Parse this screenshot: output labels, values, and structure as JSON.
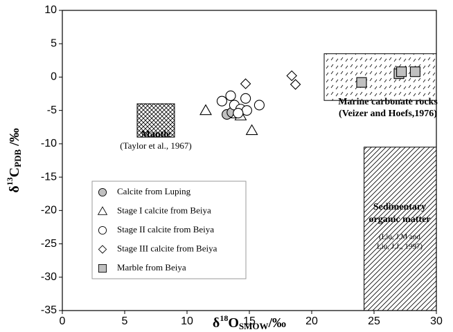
{
  "chart_data": {
    "type": "scatter",
    "x_label": {
      "pre": "δ",
      "sup": "18",
      "main": "O",
      "sub": "SMOW",
      "post": "/‰"
    },
    "y_label": {
      "pre": "δ",
      "sup": "13",
      "main": "C",
      "sub": "PDB",
      "post": " /‰"
    },
    "xlim": [
      0,
      30
    ],
    "ylim": [
      -35,
      10
    ],
    "xticks": [
      0,
      5,
      10,
      15,
      20,
      25,
      30
    ],
    "yticks": [
      -35,
      -30,
      -25,
      -20,
      -15,
      -10,
      -5,
      0,
      5,
      10
    ],
    "legend": "lower left",
    "series": [
      {
        "name": "Calcite from Luping",
        "marker": "circle",
        "color": "#c0c0c0",
        "x": [
          13.2,
          13.6
        ],
        "values": [
          -5.6,
          -5.3
        ]
      },
      {
        "name": "Stage I calcite from Beiya",
        "marker": "triangle",
        "color": "#ffffff",
        "x": [
          11.5,
          14.0,
          14.3,
          15.2
        ],
        "values": [
          -5.0,
          -5.5,
          -5.8,
          -8.0
        ]
      },
      {
        "name": "Stage II calcite from Beiya",
        "marker": "circle",
        "color": "#ffffff",
        "x": [
          12.8,
          13.5,
          13.8,
          14.3,
          14.7,
          14.8,
          15.8,
          14.1
        ],
        "values": [
          -3.6,
          -2.8,
          -4.2,
          -4.8,
          -3.2,
          -5.0,
          -4.2,
          -5.4
        ]
      },
      {
        "name": "Stage III calcite from Beiya",
        "marker": "diamond",
        "color": "#ffffff",
        "x": [
          14.7,
          18.4,
          18.7
        ],
        "values": [
          -1.0,
          0.2,
          -1.1
        ]
      },
      {
        "name": "Marble from Beiya",
        "marker": "square",
        "color": "#c0c0c0",
        "x": [
          24.0,
          27.0,
          27.2,
          28.3
        ],
        "values": [
          -0.8,
          0.5,
          0.8,
          0.8
        ]
      }
    ],
    "regions": [
      {
        "pattern": "cross",
        "xlim": [
          6,
          9
        ],
        "ylim": [
          -9,
          -4
        ],
        "labels": [
          "Mantle"
        ],
        "notes": [
          "(Taylor et al., 1967)"
        ]
      },
      {
        "pattern": "dash",
        "xlim": [
          21,
          30
        ],
        "ylim": [
          -3.5,
          3.5
        ],
        "labels": [
          "Marine carbonate rocks"
        ],
        "notes": [
          "(Veizer and Hoefs,1976)"
        ]
      },
      {
        "pattern": "diag",
        "xlim": [
          24.2,
          30
        ],
        "ylim": [
          -35,
          -10.5
        ],
        "labels": [
          "Sedimentary",
          "organic matter"
        ],
        "notes": [
          "(Liu, J.M and",
          "Liu, J.J., 1997)"
        ]
      }
    ]
  }
}
